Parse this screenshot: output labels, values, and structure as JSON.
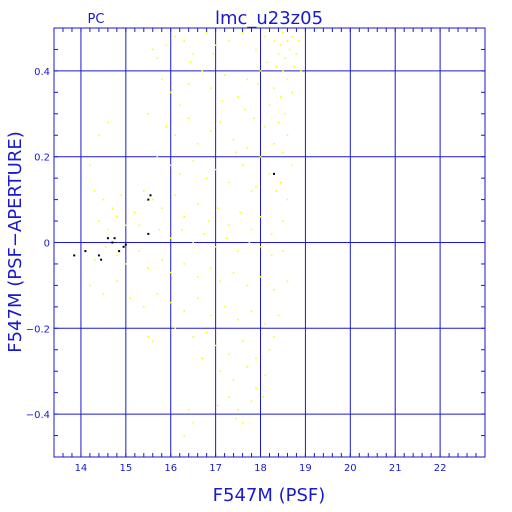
{
  "chart_data": {
    "type": "scatter",
    "title": "lmc_u23z05",
    "tag": "PC",
    "xlabel": "F547M (PSF)",
    "ylabel": "F547M (PSF−APERTURE)",
    "xlim": [
      13.4,
      23.0
    ],
    "ylim": [
      -0.5,
      0.5
    ],
    "x_ticks": [
      14,
      15,
      16,
      17,
      18,
      19,
      20,
      21,
      22
    ],
    "x_tick_labels": [
      "14",
      "15",
      "16",
      "17",
      "18",
      "19",
      "20",
      "21",
      "22"
    ],
    "y_ticks": [
      -0.4,
      -0.2,
      0,
      0.2,
      0.4
    ],
    "y_tick_labels": [
      "−0.4",
      "−0.2",
      "0",
      "0.2",
      "0.4"
    ],
    "grid": true,
    "colors": {
      "axes": "#1a1acc",
      "grid": "#1a1acc",
      "background": "#ffffff"
    },
    "series": [
      {
        "color": "#ffff00",
        "points": [
          [
            15.6,
            0.45
          ],
          [
            15.7,
            0.43
          ],
          [
            15.9,
            0.46
          ],
          [
            16.1,
            0.48
          ],
          [
            16.3,
            0.47
          ],
          [
            16.5,
            0.44
          ],
          [
            16.8,
            0.49
          ],
          [
            17.0,
            0.46
          ],
          [
            17.3,
            0.47
          ],
          [
            17.6,
            0.49
          ],
          [
            17.9,
            0.45
          ],
          [
            18.1,
            0.48
          ],
          [
            18.3,
            0.47
          ],
          [
            18.45,
            0.46
          ],
          [
            18.5,
            0.49
          ],
          [
            18.6,
            0.47
          ],
          [
            18.65,
            0.45
          ],
          [
            18.4,
            0.44
          ],
          [
            18.7,
            0.48
          ],
          [
            18.55,
            0.43
          ],
          [
            18.35,
            0.41
          ],
          [
            18.5,
            0.4
          ],
          [
            18.6,
            0.38
          ],
          [
            18.3,
            0.36
          ],
          [
            18.45,
            0.34
          ],
          [
            18.7,
            0.35
          ],
          [
            18.2,
            0.32
          ],
          [
            18.55,
            0.3
          ],
          [
            18.4,
            0.28
          ],
          [
            18.1,
            0.27
          ],
          [
            18.6,
            0.25
          ],
          [
            18.3,
            0.23
          ],
          [
            18.5,
            0.21
          ],
          [
            18.0,
            0.2
          ],
          [
            18.7,
            0.18
          ],
          [
            18.2,
            0.16
          ],
          [
            18.45,
            0.14
          ],
          [
            17.9,
            0.13
          ],
          [
            18.35,
            0.12
          ],
          [
            18.6,
            0.1
          ],
          [
            15.8,
            0.38
          ],
          [
            16.0,
            0.35
          ],
          [
            16.2,
            0.32
          ],
          [
            16.4,
            0.37
          ],
          [
            16.7,
            0.4
          ],
          [
            16.9,
            0.36
          ],
          [
            17.2,
            0.39
          ],
          [
            17.5,
            0.34
          ],
          [
            17.7,
            0.38
          ],
          [
            17.95,
            0.37
          ],
          [
            15.5,
            0.3
          ],
          [
            15.9,
            0.27
          ],
          [
            16.1,
            0.25
          ],
          [
            16.4,
            0.29
          ],
          [
            16.6,
            0.23
          ],
          [
            16.9,
            0.26
          ],
          [
            17.1,
            0.28
          ],
          [
            17.4,
            0.24
          ],
          [
            17.7,
            0.22
          ],
          [
            17.85,
            0.29
          ],
          [
            15.7,
            0.2
          ],
          [
            16.0,
            0.18
          ],
          [
            16.2,
            0.16
          ],
          [
            16.5,
            0.19
          ],
          [
            16.8,
            0.15
          ],
          [
            17.0,
            0.17
          ],
          [
            17.3,
            0.14
          ],
          [
            17.6,
            0.18
          ],
          [
            17.8,
            0.12
          ],
          [
            17.45,
            0.21
          ],
          [
            15.4,
            0.12
          ],
          [
            15.6,
            0.1
          ],
          [
            15.8,
            0.08
          ],
          [
            16.1,
            0.11
          ],
          [
            16.3,
            0.06
          ],
          [
            16.6,
            0.09
          ],
          [
            16.85,
            0.05
          ],
          [
            17.05,
            0.08
          ],
          [
            17.3,
            0.04
          ],
          [
            17.55,
            0.07
          ],
          [
            17.8,
            0.03
          ],
          [
            18.0,
            0.06
          ],
          [
            18.25,
            0.02
          ],
          [
            18.5,
            0.05
          ],
          [
            15.3,
            0.04
          ],
          [
            15.5,
            0.02
          ],
          [
            15.75,
            0.03
          ],
          [
            16.0,
            0.01
          ],
          [
            16.25,
            0.03
          ],
          [
            16.5,
            0.0
          ],
          [
            16.75,
            0.02
          ],
          [
            17.0,
            -0.01
          ],
          [
            17.25,
            0.01
          ],
          [
            17.5,
            -0.02
          ],
          [
            17.75,
            0.0
          ],
          [
            18.0,
            -0.01
          ],
          [
            18.25,
            -0.03
          ],
          [
            18.5,
            -0.02
          ],
          [
            14.2,
            0.18
          ],
          [
            14.4,
            0.25
          ],
          [
            14.6,
            0.28
          ],
          [
            14.3,
            0.12
          ],
          [
            14.5,
            0.1
          ],
          [
            14.7,
            0.08
          ],
          [
            14.9,
            0.11
          ],
          [
            14.4,
            0.05
          ],
          [
            14.6,
            0.03
          ],
          [
            14.8,
            0.06
          ],
          [
            15.0,
            0.04
          ],
          [
            15.2,
            0.07
          ],
          [
            14.1,
            -0.02
          ],
          [
            14.3,
            -0.04
          ],
          [
            14.55,
            -0.01
          ],
          [
            14.8,
            -0.03
          ],
          [
            15.0,
            -0.05
          ],
          [
            15.3,
            -0.02
          ],
          [
            15.5,
            -0.06
          ],
          [
            15.8,
            -0.04
          ],
          [
            16.0,
            -0.07
          ],
          [
            16.3,
            -0.05
          ],
          [
            16.6,
            -0.08
          ],
          [
            16.9,
            -0.06
          ],
          [
            17.1,
            -0.09
          ],
          [
            17.4,
            -0.07
          ],
          [
            17.7,
            -0.1
          ],
          [
            18.0,
            -0.08
          ],
          [
            18.3,
            -0.11
          ],
          [
            18.6,
            -0.09
          ],
          [
            14.2,
            -0.1
          ],
          [
            14.5,
            -0.12
          ],
          [
            14.8,
            -0.09
          ],
          [
            15.1,
            -0.13
          ],
          [
            15.4,
            -0.15
          ],
          [
            15.7,
            -0.12
          ],
          [
            16.0,
            -0.14
          ],
          [
            16.3,
            -0.16
          ],
          [
            16.6,
            -0.13
          ],
          [
            16.9,
            -0.17
          ],
          [
            17.2,
            -0.15
          ],
          [
            17.5,
            -0.18
          ],
          [
            17.8,
            -0.16
          ],
          [
            18.1,
            -0.19
          ],
          [
            18.4,
            -0.17
          ],
          [
            16.1,
            -0.2
          ],
          [
            16.5,
            -0.22
          ],
          [
            16.8,
            -0.21
          ],
          [
            17.0,
            -0.24
          ],
          [
            17.3,
            -0.26
          ],
          [
            17.6,
            -0.23
          ],
          [
            17.9,
            -0.27
          ],
          [
            18.2,
            -0.25
          ],
          [
            15.5,
            -0.22
          ],
          [
            15.6,
            -0.23
          ],
          [
            16.7,
            -0.27
          ],
          [
            17.1,
            -0.3
          ],
          [
            17.4,
            -0.32
          ],
          [
            17.7,
            -0.29
          ],
          [
            17.9,
            -0.34
          ],
          [
            18.1,
            -0.31
          ],
          [
            17.3,
            -0.36
          ],
          [
            17.5,
            -0.39
          ],
          [
            17.8,
            -0.37
          ],
          [
            17.6,
            -0.42
          ],
          [
            17.45,
            -0.41
          ],
          [
            16.4,
            -0.39
          ],
          [
            16.5,
            -0.42
          ],
          [
            16.3,
            -0.45
          ],
          [
            18.05,
            -0.36
          ],
          [
            17.05,
            -0.38
          ],
          [
            18.3,
            -0.22
          ],
          [
            17.65,
            0.31
          ],
          [
            17.15,
            0.33
          ],
          [
            16.45,
            0.42
          ],
          [
            16.95,
            0.44
          ],
          [
            18.75,
            0.41
          ],
          [
            18.8,
            0.44
          ],
          [
            18.9,
            0.4
          ],
          [
            18.85,
            0.47
          ],
          [
            18.15,
            0.42
          ],
          [
            18.0,
            0.4
          ]
        ]
      },
      {
        "color": "#000000",
        "points": [
          [
            13.85,
            -0.03
          ],
          [
            14.1,
            -0.02
          ],
          [
            14.4,
            -0.03
          ],
          [
            14.45,
            -0.04
          ],
          [
            14.6,
            0.01
          ],
          [
            14.7,
            0.0
          ],
          [
            14.75,
            0.01
          ],
          [
            14.85,
            -0.02
          ],
          [
            14.95,
            -0.01
          ],
          [
            15.0,
            -0.005
          ],
          [
            15.5,
            0.02
          ],
          [
            15.5,
            0.1
          ],
          [
            15.55,
            0.11
          ],
          [
            18.3,
            0.16
          ]
        ]
      }
    ]
  }
}
